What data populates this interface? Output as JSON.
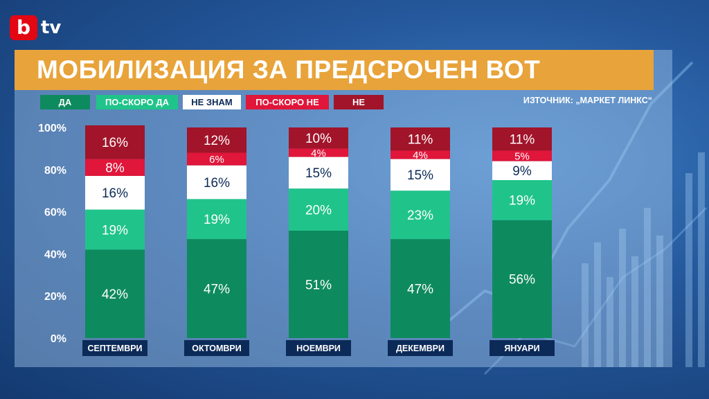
{
  "logo": {
    "mark": "b",
    "text": "tv"
  },
  "title": "МОБИЛИЗАЦИЯ ЗА ПРЕДСРОЧЕН ВОТ",
  "source": "ИЗТОЧНИК: „МАРКЕТ ЛИНКС“",
  "legend": [
    {
      "label": "ДА",
      "color": "#0e8a5f"
    },
    {
      "label": "ПО-СКОРО ДА",
      "color": "#20c48a"
    },
    {
      "label": "НЕ ЗНАМ",
      "color": "#ffffff"
    },
    {
      "label": "ПО-СКОРО НЕ",
      "color": "#e0163a"
    },
    {
      "label": "НЕ",
      "color": "#a1142a"
    }
  ],
  "chart_data": {
    "type": "bar",
    "stacked": true,
    "categories": [
      "СЕПТЕМВРИ",
      "ОКТОМВРИ",
      "НОЕМВРИ",
      "ДЕКЕМВРИ",
      "ЯНУАРИ"
    ],
    "series": [
      {
        "name": "ДА",
        "values": [
          42,
          47,
          51,
          47,
          56
        ]
      },
      {
        "name": "ПО-СКОРО ДА",
        "values": [
          19,
          19,
          20,
          23,
          19
        ]
      },
      {
        "name": "НЕ ЗНАМ",
        "values": [
          16,
          16,
          15,
          15,
          9
        ]
      },
      {
        "name": "ПО-СКОРО НЕ",
        "values": [
          8,
          6,
          4,
          4,
          5
        ]
      },
      {
        "name": "НЕ",
        "values": [
          16,
          12,
          10,
          11,
          11
        ]
      }
    ],
    "ylim": [
      0,
      100
    ],
    "yticks": [
      "0%",
      "20%",
      "40%",
      "60%",
      "80%",
      "100%"
    ],
    "value_suffix": "%",
    "grid": false,
    "legend_position": "top-left"
  }
}
